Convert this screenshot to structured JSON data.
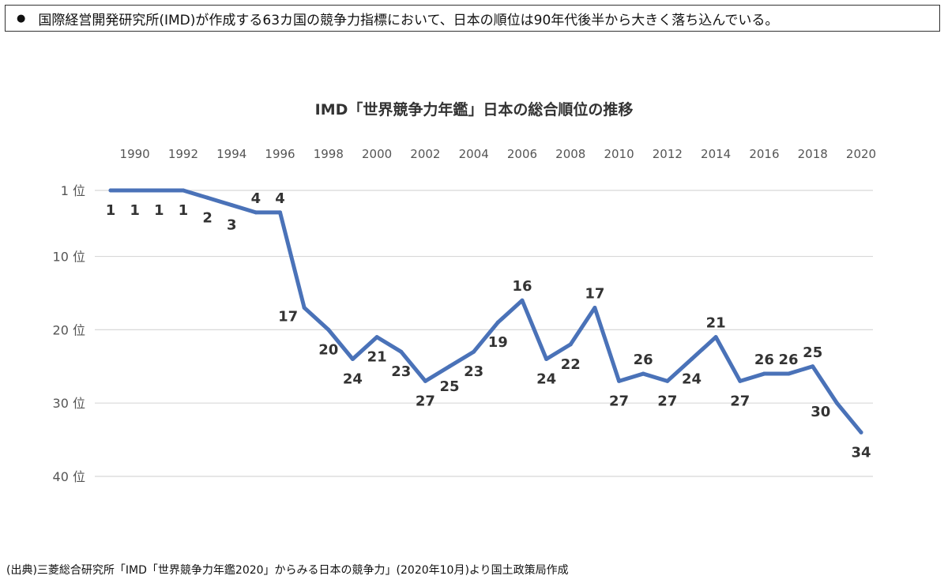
{
  "header": {
    "bullet": "●",
    "text": "国際経営開発研究所(IMD)が作成する63カ国の競争力指標において、日本の順位は90年代後半から大きく落ち込んでいる。"
  },
  "source": "(出典)三菱総合研究所「IMD「世界競争力年鑑2020」からみる日本の競争力」(2020年10月)より国土政策局作成",
  "colors": {
    "line": "#4a72b8",
    "grid": "#d8d8d8",
    "text": "#333333"
  },
  "chart_data": {
    "type": "line",
    "title": "IMD「世界競争力年鑑」日本の総合順位の推移",
    "x_ticks": [
      "1990",
      "1992",
      "1994",
      "1996",
      "1998",
      "2000",
      "2002",
      "2004",
      "2006",
      "2008",
      "2010",
      "2012",
      "2014",
      "2016",
      "2018",
      "2020"
    ],
    "y_ticks": [
      {
        "value": 1,
        "label": "1 位"
      },
      {
        "value": 10,
        "label": "10 位"
      },
      {
        "value": 20,
        "label": "20 位"
      },
      {
        "value": 30,
        "label": "30 位"
      },
      {
        "value": 40,
        "label": "40 位"
      }
    ],
    "y_inverted": true,
    "ylim": [
      1,
      40
    ],
    "xlim": [
      1989,
      2020
    ],
    "x_axis_position": "top",
    "grid": true,
    "series": [
      {
        "x": [
          1989,
          1990,
          1991,
          1992,
          1993,
          1994,
          1995,
          1996,
          1997,
          1998,
          1999,
          2000,
          2001,
          2002,
          2003,
          2004,
          2005,
          2006,
          2007,
          2008,
          2009,
          2010,
          2011,
          2012,
          2013,
          2014,
          2015,
          2016,
          2017,
          2018,
          2019,
          2020
        ],
        "values": [
          1,
          1,
          1,
          1,
          2,
          3,
          4,
          4,
          17,
          20,
          24,
          21,
          23,
          27,
          25,
          23,
          19,
          16,
          24,
          22,
          17,
          27,
          26,
          27,
          24,
          21,
          27,
          26,
          26,
          25,
          30,
          34
        ],
        "labels": [
          "1",
          "1",
          "1",
          "1",
          "2",
          "3",
          "4",
          "4",
          "17",
          "20",
          "24",
          "21",
          "23",
          "27",
          "25",
          "23",
          "19",
          "16",
          "24",
          "22",
          "17",
          "27",
          "26",
          "27",
          "24",
          "21",
          "27",
          "26",
          "26",
          "25",
          "30",
          "34"
        ],
        "label_pos": [
          "below",
          "below",
          "below",
          "below",
          "below",
          "below",
          "above",
          "above",
          "left",
          "below",
          "below",
          "below",
          "below",
          "below",
          "below",
          "below",
          "below",
          "above",
          "below",
          "below",
          "above",
          "below",
          "above",
          "below",
          "below",
          "above",
          "below",
          "above",
          "above",
          "above",
          "left",
          "below"
        ]
      }
    ]
  }
}
